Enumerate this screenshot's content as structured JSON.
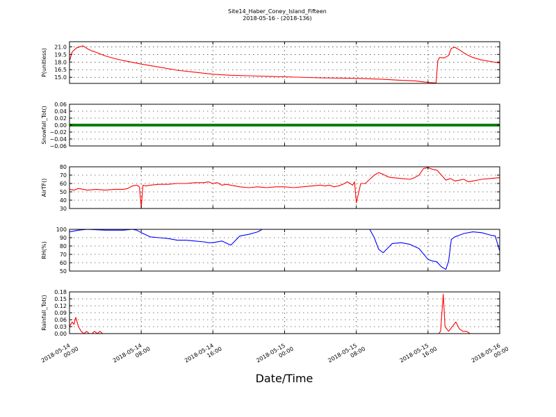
{
  "figure": {
    "title_line1": "Site14_Haber_Coney_Island_Fifteen",
    "title_line2": "2018-05-16 - (2018-136)",
    "xlabel": "Date/Time"
  },
  "x_ticks": [
    {
      "value": 0,
      "label_date": "2018-05-14",
      "label_time": "00:00"
    },
    {
      "value": 8,
      "label_date": "2018-05-14",
      "label_time": "08:00"
    },
    {
      "value": 16,
      "label_date": "2018-05-14",
      "label_time": "16:00"
    },
    {
      "value": 24,
      "label_date": "2018-05-15",
      "label_time": "00:00"
    },
    {
      "value": 32,
      "label_date": "2018-05-15",
      "label_time": "08:00"
    },
    {
      "value": 40,
      "label_date": "2018-05-15",
      "label_time": "16:00"
    },
    {
      "value": 48,
      "label_date": "2018-05-16",
      "label_time": "00:00"
    }
  ],
  "chart_data": [
    {
      "type": "line",
      "id": "pressure",
      "ylabel": "P(unitless)",
      "ylim": [
        13.8,
        22.0
      ],
      "yticks": [
        15.0,
        16.5,
        18.0,
        19.5,
        21.0
      ],
      "ytick_labels": [
        "15.0",
        "16.5",
        "18.0",
        "19.5",
        "21.0"
      ],
      "xlim": [
        0,
        48
      ],
      "grid": true,
      "series": [
        {
          "color": "#ff0000",
          "x": [
            0,
            0.3,
            0.8,
            1.5,
            2,
            2.5,
            3,
            4,
            5,
            6,
            8,
            10,
            12,
            14,
            16,
            18,
            20,
            22,
            24,
            28,
            32,
            35,
            37,
            38.5,
            39.5,
            40,
            40.8,
            40.9,
            41.1,
            41.3,
            41.8,
            42.3,
            42.6,
            43,
            43.5,
            44,
            44.5,
            45,
            46,
            47,
            48
          ],
          "y": [
            18.2,
            20.0,
            20.8,
            21.2,
            20.6,
            20.2,
            19.9,
            19.2,
            18.7,
            18.3,
            17.6,
            17.0,
            16.4,
            16.0,
            15.6,
            15.4,
            15.3,
            15.2,
            15.1,
            14.9,
            14.8,
            14.6,
            14.4,
            14.3,
            14.1,
            14.0,
            13.9,
            13.9,
            18.3,
            18.9,
            18.8,
            19.3,
            20.7,
            20.9,
            20.4,
            19.8,
            19.3,
            18.9,
            18.4,
            18.1,
            17.8
          ]
        }
      ]
    },
    {
      "type": "line",
      "id": "snowfall",
      "ylabel": "Snowfall_Tot()",
      "ylim": [
        -0.06,
        0.06
      ],
      "yticks": [
        -0.06,
        -0.04,
        -0.02,
        0.0,
        0.02,
        0.04,
        0.06
      ],
      "ytick_labels": [
        "−0.06",
        "−0.04",
        "−0.02",
        "0.00",
        "0.02",
        "0.04",
        "0.06"
      ],
      "xlim": [
        0,
        48
      ],
      "grid": true,
      "series": [
        {
          "color": "#008000",
          "marker": "dot",
          "x": [
            0,
            48
          ],
          "y": [
            0,
            0
          ]
        }
      ]
    },
    {
      "type": "line",
      "id": "airtemp",
      "ylabel": "AirTF()",
      "ylim": [
        30,
        80
      ],
      "yticks": [
        30,
        40,
        50,
        60,
        70,
        80
      ],
      "ytick_labels": [
        "30",
        "40",
        "50",
        "60",
        "70",
        "80"
      ],
      "xlim": [
        0,
        48
      ],
      "grid": true,
      "series": [
        {
          "color": "#ff0000",
          "x": [
            0,
            0.5,
            1,
            2,
            3,
            4,
            5,
            6,
            6.5,
            7,
            7.5,
            7.8,
            8,
            8.2,
            8.5,
            9,
            10,
            11,
            12,
            13,
            14,
            15,
            15.5,
            16,
            16.5,
            17,
            17.5,
            18,
            19,
            20,
            21,
            22,
            23,
            24,
            25,
            26,
            27,
            28,
            28.5,
            29,
            29.5,
            30,
            30.5,
            31,
            31.3,
            31.6,
            31.8,
            32,
            32.5,
            33,
            33.5,
            34,
            34.5,
            35,
            35.5,
            36,
            37,
            38,
            38.5,
            39,
            39.5,
            40,
            40.5,
            41,
            41.5,
            42,
            42.5,
            43,
            43.5,
            44,
            44.5,
            45,
            46,
            47,
            48
          ],
          "y": [
            53,
            52,
            54,
            52,
            53,
            52,
            53,
            53,
            54,
            57,
            58,
            56,
            31,
            58,
            57,
            58,
            59,
            59,
            60,
            60,
            61,
            61,
            62,
            60,
            61,
            58,
            59,
            58,
            56,
            55,
            56,
            55,
            56,
            56,
            55,
            56,
            57,
            58,
            57,
            58,
            56,
            57,
            59,
            62,
            60,
            58,
            62,
            37,
            60,
            60,
            65,
            70,
            73,
            71,
            68,
            67,
            66,
            65,
            67,
            70,
            78,
            79,
            77,
            76,
            70,
            64,
            66,
            63,
            64,
            65,
            62,
            63,
            65,
            66,
            67
          ]
        }
      ]
    },
    {
      "type": "line",
      "id": "rh",
      "ylabel": "RH(%)",
      "ylim": [
        50,
        100
      ],
      "yticks": [
        50,
        60,
        70,
        80,
        90,
        100
      ],
      "ytick_labels": [
        "50",
        "60",
        "70",
        "80",
        "90",
        "100"
      ],
      "xlim": [
        0,
        48
      ],
      "grid": true,
      "series": [
        {
          "color": "#0000ff",
          "x": [
            0,
            0.5,
            1,
            2,
            4,
            6,
            7,
            7.5,
            8,
            9,
            10,
            11,
            12,
            13,
            14,
            15,
            15.5,
            16,
            17,
            18,
            19,
            20,
            21,
            21.5
          ],
          "y": [
            97,
            98,
            99,
            100,
            99,
            99,
            100,
            99,
            96,
            91,
            90,
            89,
            87,
            87,
            86,
            85,
            84,
            84,
            86,
            81,
            92,
            94,
            97,
            100
          ]
        },
        {
          "color": "#0000ff",
          "x": [
            33.5,
            34,
            34.5,
            35,
            36,
            37,
            38,
            39,
            40,
            40.5,
            41,
            41.5,
            42,
            42.3,
            42.6,
            43,
            43.5,
            44,
            45,
            46,
            47,
            47.5,
            48
          ],
          "y": [
            100,
            90,
            76,
            72,
            83,
            84,
            82,
            77,
            64,
            62,
            61,
            55,
            52,
            62,
            88,
            91,
            93,
            95,
            97,
            96,
            93,
            92,
            74
          ]
        }
      ]
    },
    {
      "type": "line",
      "id": "rainfall",
      "ylabel": "Rainfall_Tot()",
      "ylim": [
        0,
        0.18
      ],
      "yticks": [
        0.0,
        0.03,
        0.06,
        0.09,
        0.12,
        0.15,
        0.18
      ],
      "ytick_labels": [
        "0.00",
        "0.03",
        "0.06",
        "0.09",
        "0.12",
        "0.15",
        "0.18"
      ],
      "xlim": [
        0,
        48
      ],
      "grid": true,
      "series": [
        {
          "color": "#ff0000",
          "x": [
            0,
            0.3,
            0.5,
            0.7,
            1.0,
            1.3,
            1.6,
            1.9,
            2.2,
            2.5,
            2.8,
            3.1,
            3.4,
            3.7,
            4,
            8,
            16,
            24,
            32,
            40,
            41.2,
            41.4,
            41.7,
            41.9,
            42.3,
            42.7,
            43.1,
            43.5,
            43.9,
            44.3,
            44.7,
            48
          ],
          "y": [
            0.03,
            0.05,
            0.04,
            0.07,
            0.03,
            0.01,
            0,
            0.01,
            0,
            0,
            0.01,
            0,
            0.01,
            0,
            0,
            0,
            0,
            0,
            0,
            0,
            0,
            0.01,
            0.17,
            0.03,
            0.01,
            0.03,
            0.05,
            0.02,
            0.01,
            0.01,
            0,
            0
          ]
        }
      ]
    }
  ]
}
